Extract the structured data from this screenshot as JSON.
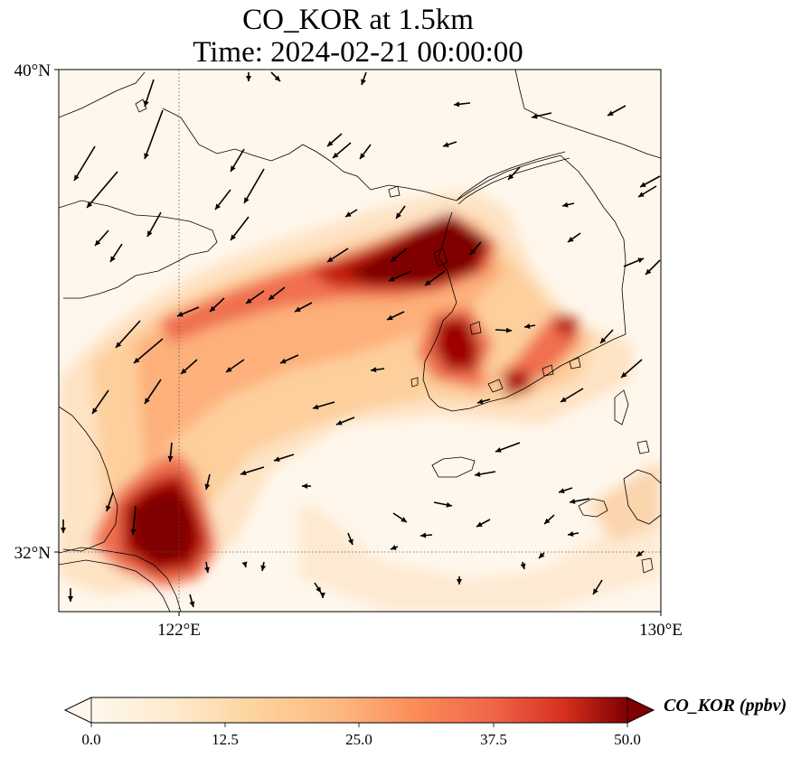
{
  "title": {
    "line1": "CO_KOR at 1.5km",
    "line2": "Time: 2024-02-21 00:00:00"
  },
  "map": {
    "extent": {
      "lon_min": 119.5,
      "lon_max": 130.0,
      "lat_min": 31.0,
      "lat_max": 40.0
    },
    "lat_ticks": [
      {
        "value": 40,
        "label": "40°N"
      },
      {
        "value": 32,
        "label": "32°N"
      }
    ],
    "lon_ticks": [
      {
        "value": 122,
        "label": "122°E"
      },
      {
        "value": 130,
        "label": "130°E"
      }
    ],
    "gridlines": "dotted at 122°E and 32°N",
    "variable": "CO_KOR",
    "level": "1.5km"
  },
  "colorbar": {
    "label": "CO_KOR (ppbv)",
    "min": 0.0,
    "max": 50.0,
    "extend": "both",
    "colormap": [
      "#fff5eb",
      "#fee6ce",
      "#fdd0a2",
      "#fdae6b",
      "#fd8d3c",
      "#f16913",
      "#d94801",
      "#a63603",
      "#7f2704"
    ],
    "ticks": [
      "0.0",
      "12.5",
      "25.0",
      "37.5",
      "50.0"
    ]
  },
  "colors": {
    "high": "#7f0000",
    "mid": "#d7301f",
    "low": "#fdbb84",
    "background": "#fff7ec"
  }
}
